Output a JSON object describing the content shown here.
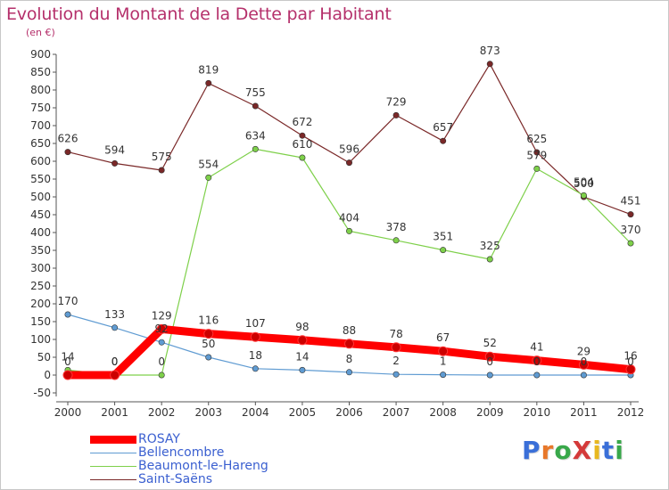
{
  "title": "Evolution du Montant de la Dette par Habitant",
  "subtitle": "(en €)",
  "logo": {
    "text": "ProXiti",
    "letters": [
      "P",
      "r",
      "o",
      "X",
      "i",
      "t",
      "i"
    ],
    "colors": [
      "#3a6fd8",
      "#e8782a",
      "#38a84a",
      "#d43a3a",
      "#e8b820",
      "#3a6fd8",
      "#38a84a"
    ]
  },
  "chart_data": {
    "type": "line",
    "categories": [
      "2000",
      "2001",
      "2002",
      "2003",
      "2004",
      "2005",
      "2006",
      "2007",
      "2008",
      "2009",
      "2010",
      "2011",
      "2012"
    ],
    "ylim": [
      -50,
      900
    ],
    "yticks": [
      -50,
      0,
      50,
      100,
      150,
      200,
      250,
      300,
      350,
      400,
      450,
      500,
      550,
      600,
      650,
      700,
      750,
      800,
      850,
      900
    ],
    "grid": false,
    "legend_position": "bottom-left",
    "series": [
      {
        "name": "ROSAY",
        "values": [
          0,
          0,
          129,
          116,
          107,
          98,
          88,
          78,
          67,
          52,
          41,
          29,
          16
        ],
        "labels": [
          "0",
          "0",
          "129",
          "116",
          "107",
          "98",
          "88",
          "78",
          "67",
          "52",
          "41",
          "29",
          "16"
        ],
        "color": "#ff0000"
      },
      {
        "name": "Bellencombre",
        "values": [
          170,
          133,
          92,
          50,
          18,
          14,
          8,
          2,
          1,
          0,
          0,
          0,
          0
        ],
        "labels": [
          "170",
          "133",
          "92",
          "50",
          "18",
          "14",
          "8",
          "2",
          "1",
          "0",
          "0",
          "0",
          "0"
        ],
        "color": "#5f9bd2"
      },
      {
        "name": "Beaumont-le-Hareng",
        "values": [
          14,
          0,
          0,
          554,
          634,
          610,
          404,
          378,
          351,
          325,
          579,
          504,
          370
        ],
        "labels": [
          "14",
          "0",
          "0",
          "554",
          "634",
          "610",
          "404",
          "378",
          "351",
          "325",
          "579",
          "504",
          "370"
        ],
        "color": "#7ed04a"
      },
      {
        "name": "Saint-Saëns",
        "values": [
          626,
          594,
          575,
          819,
          755,
          672,
          596,
          729,
          657,
          873,
          625,
          500,
          451
        ],
        "labels": [
          "626",
          "594",
          "575",
          "819",
          "755",
          "672",
          "596",
          "729",
          "657",
          "873",
          "625",
          "500",
          "451"
        ],
        "color": "#7a2828"
      }
    ]
  }
}
